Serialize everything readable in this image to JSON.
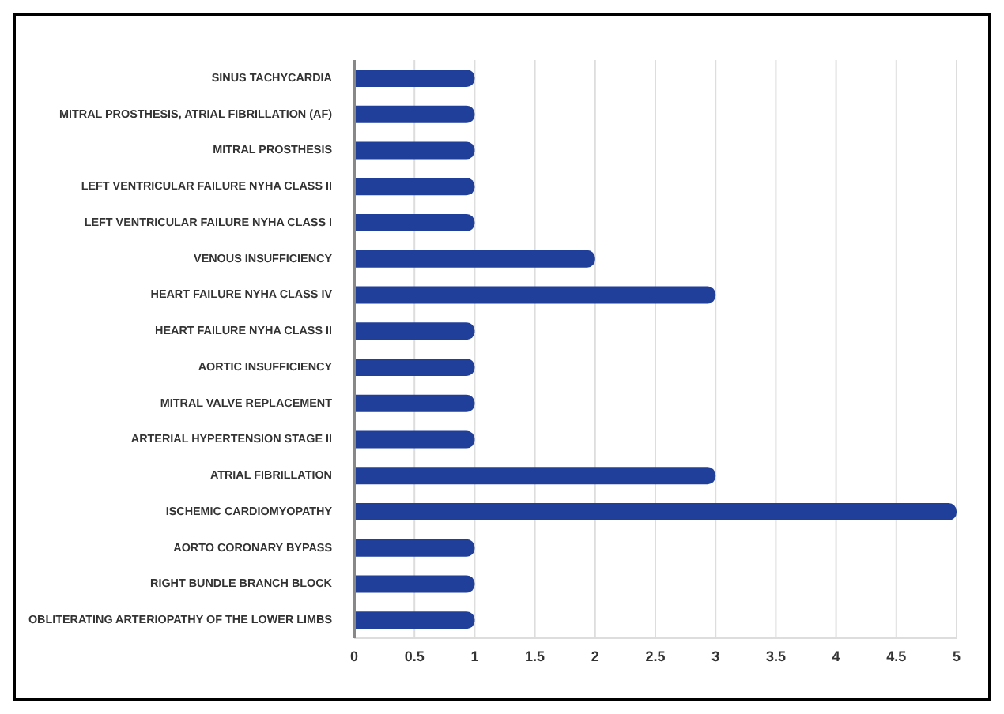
{
  "chart_data": {
    "type": "bar",
    "orientation": "horizontal",
    "categories": [
      "SINUS TACHYCARDIA",
      "MITRAL PROSTHESIS, ATRIAL FIBRILLATION (AF)",
      "MITRAL PROSTHESIS",
      "LEFT VENTRICULAR FAILURE NYHA CLASS II",
      "LEFT VENTRICULAR FAILURE NYHA CLASS I",
      "VENOUS INSUFFICIENCY",
      "HEART FAILURE NYHA CLASS IV",
      "HEART FAILURE NYHA CLASS II",
      "AORTIC INSUFFICIENCY",
      "MITRAL VALVE REPLACEMENT",
      "ARTERIAL HYPERTENSION STAGE II",
      "ATRIAL FIBRILLATION",
      "ISCHEMIC CARDIOMYOPATHY",
      "AORTO CORONARY BYPASS",
      "RIGHT BUNDLE BRANCH BLOCK",
      "OBLITERATING ARTERIOPATHY OF THE LOWER LIMBS"
    ],
    "values": [
      1,
      1,
      1,
      1,
      1,
      2,
      3,
      1,
      1,
      1,
      1,
      3,
      5,
      1,
      1,
      1
    ],
    "color": "#203f9a",
    "xlim": [
      0,
      5
    ],
    "xticks": [
      0,
      0.5,
      1,
      1.5,
      2,
      2.5,
      3,
      3.5,
      4,
      4.5,
      5
    ],
    "grid": "x"
  }
}
